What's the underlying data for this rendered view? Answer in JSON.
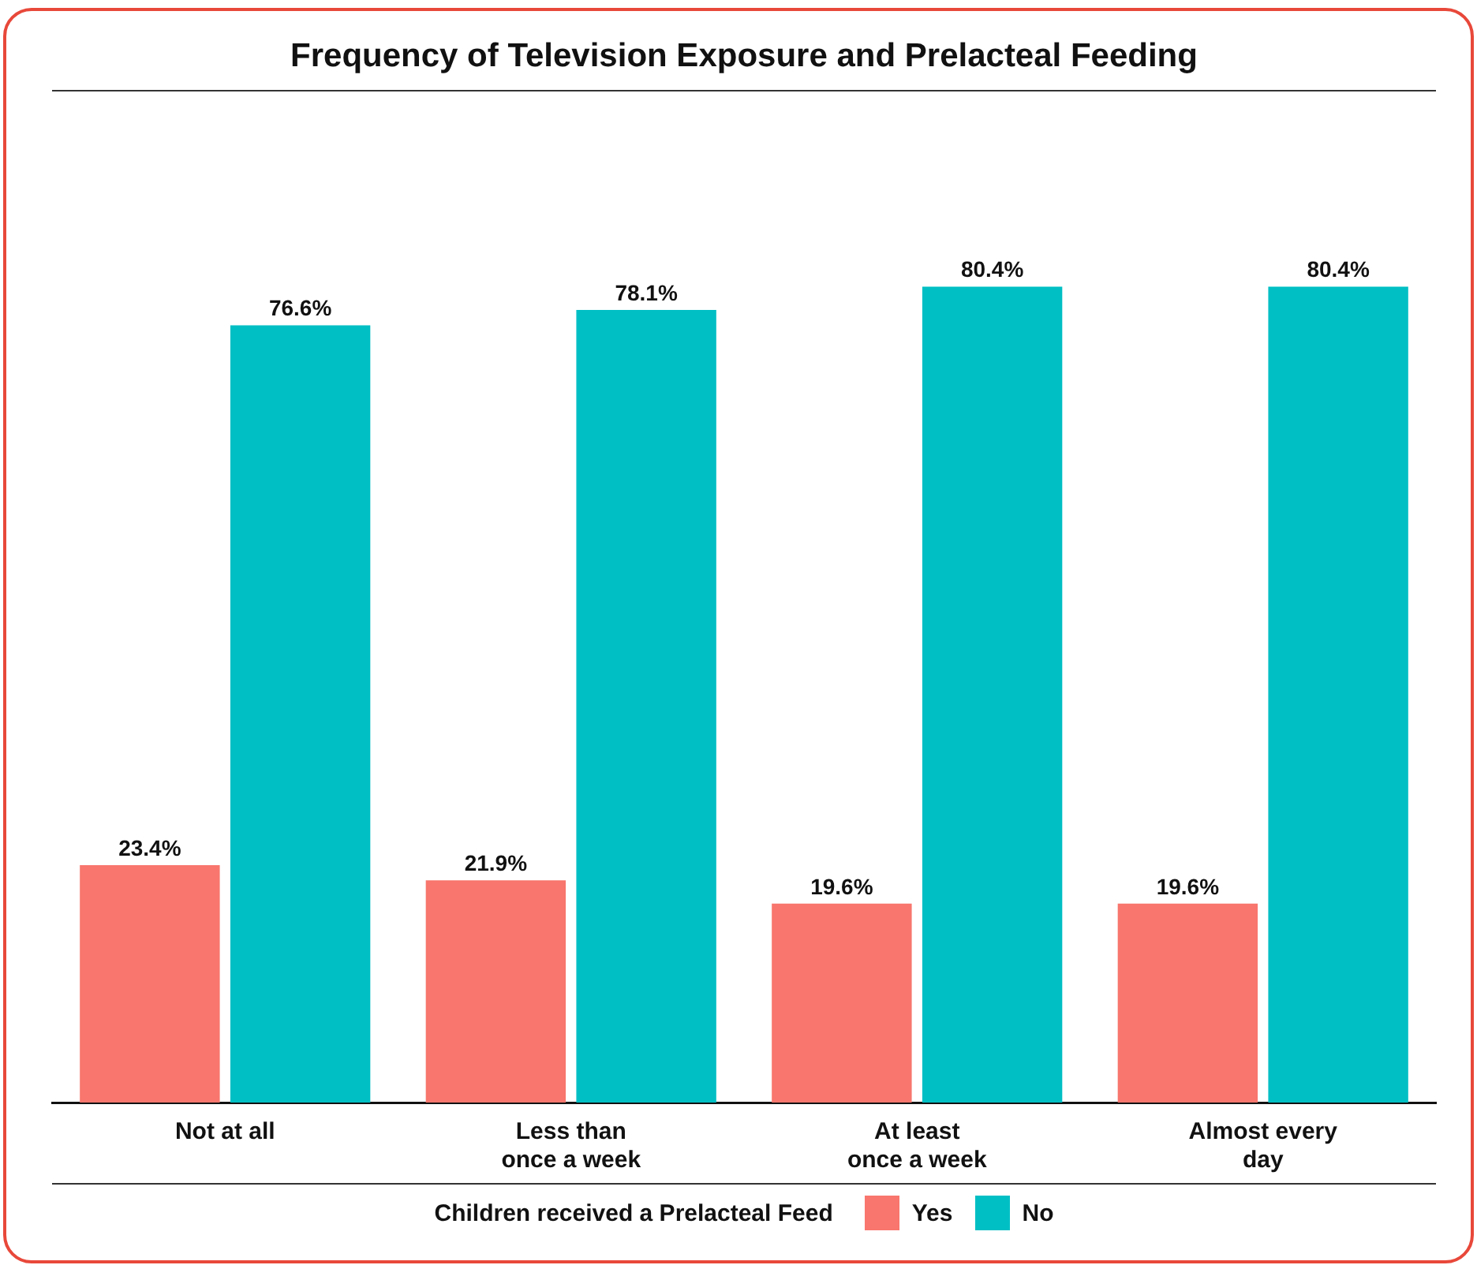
{
  "chart_data": {
    "type": "bar",
    "title": "Frequency of Television Exposure and Prelacteal Feeding",
    "categories": [
      "Not at all",
      "Less than once a week",
      "At least once a week",
      "Almost every day"
    ],
    "series": [
      {
        "name": "Yes",
        "color": "#f8766d",
        "values": [
          23.4,
          21.9,
          19.6,
          19.6
        ],
        "value_labels": [
          "23.4%",
          "21.9%",
          "19.6%",
          "19.6%"
        ]
      },
      {
        "name": "No",
        "color": "#00bfc4",
        "values": [
          76.6,
          78.1,
          80.4,
          80.4
        ],
        "value_labels": [
          "76.6%",
          "78.1%",
          "80.4%",
          "80.4%"
        ]
      }
    ],
    "legend": "bottom",
    "legend_title": "Children received a Prelacteal Feed",
    "grid": false
  }
}
